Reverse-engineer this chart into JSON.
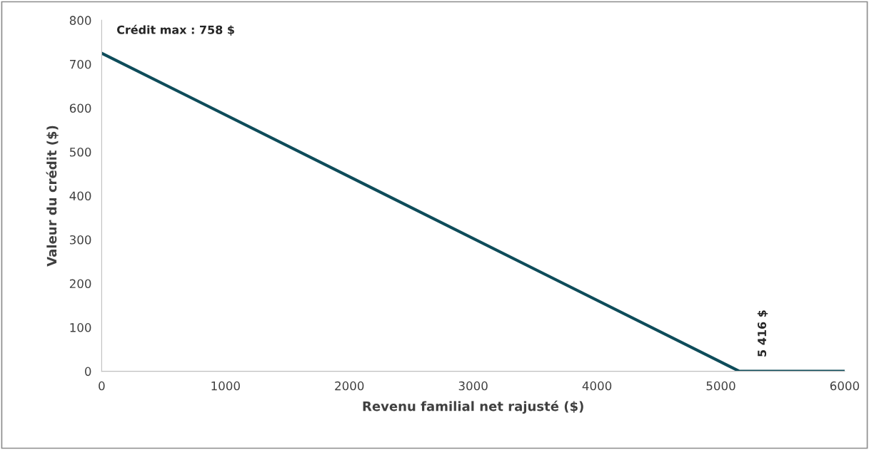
{
  "chart_data": {
    "type": "line",
    "xlabel": "Revenu familial net rajusté ($)",
    "ylabel": "Valeur du crédit ($)",
    "x": [
      0,
      5150,
      6000
    ],
    "series": [
      {
        "color": "#0e4c5a",
        "values": [
          725,
          0,
          0
        ]
      }
    ],
    "xlim": [
      0,
      6000
    ],
    "xticks": [
      0,
      1000,
      2000,
      3000,
      4000,
      5000,
      6000
    ],
    "ylim": [
      0,
      800
    ],
    "yticks": [
      0,
      100,
      200,
      300,
      400,
      500,
      600,
      700,
      800
    ],
    "grid": false,
    "legend": false,
    "marker": "none",
    "line_style": "solid",
    "annotations": [
      "Crédit max : 758 $",
      "5 416 $"
    ]
  }
}
